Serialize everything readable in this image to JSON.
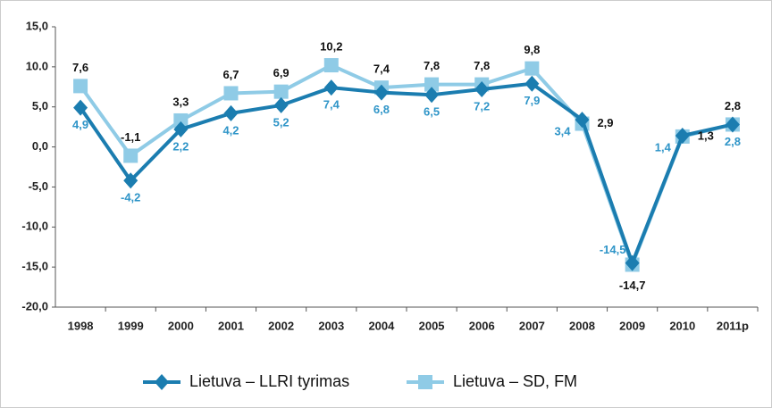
{
  "chart_data": {
    "type": "line",
    "categories": [
      "1998",
      "1999",
      "2000",
      "2001",
      "2002",
      "2003",
      "2004",
      "2005",
      "2006",
      "2007",
      "2008",
      "2009",
      "2010",
      "2011p"
    ],
    "series": [
      {
        "name": "Lietuva – LLRI tyrimas",
        "color": "#1b7db0",
        "label_color": "#2f95c8",
        "marker": "diamond",
        "values": [
          4.9,
          -4.2,
          2.2,
          4.2,
          5.2,
          7.4,
          6.8,
          6.5,
          7.2,
          7.9,
          3.4,
          -14.5,
          1.4,
          2.8
        ],
        "value_labels": [
          "4,9",
          "-4,2",
          "2,2",
          "4,2",
          "5,2",
          "7,4",
          "6,8",
          "6,5",
          "7,2",
          "7,9",
          "3,4",
          "-14,5",
          "1,4",
          "2,8"
        ]
      },
      {
        "name": "Lietuva – SD, FM",
        "color": "#8fcbe6",
        "label_color": "#111111",
        "marker": "square",
        "values": [
          7.6,
          -1.1,
          3.3,
          6.7,
          6.9,
          10.2,
          7.4,
          7.8,
          7.8,
          9.8,
          2.9,
          -14.7,
          1.3,
          2.8
        ],
        "value_labels": [
          "7,6",
          "-1,1",
          "3,3",
          "6,7",
          "6,9",
          "10,2",
          "7,4",
          "7,8",
          "7,8",
          "9,8",
          "2,9",
          "-14,7",
          "1,3",
          "2,8"
        ]
      }
    ],
    "ylim": [
      -20,
      15
    ],
    "yticks": [
      {
        "value": -20,
        "label": "-20,0"
      },
      {
        "value": -15,
        "label": "-15,0"
      },
      {
        "value": -10,
        "label": "-10,0"
      },
      {
        "value": -5,
        "label": "-5,0"
      },
      {
        "value": 0,
        "label": "0,0"
      },
      {
        "value": 5,
        "label": "5,0"
      },
      {
        "value": 10,
        "label": "10.0"
      },
      {
        "value": 15,
        "label": "15,0"
      }
    ],
    "grid": false,
    "legend": "bottom"
  }
}
